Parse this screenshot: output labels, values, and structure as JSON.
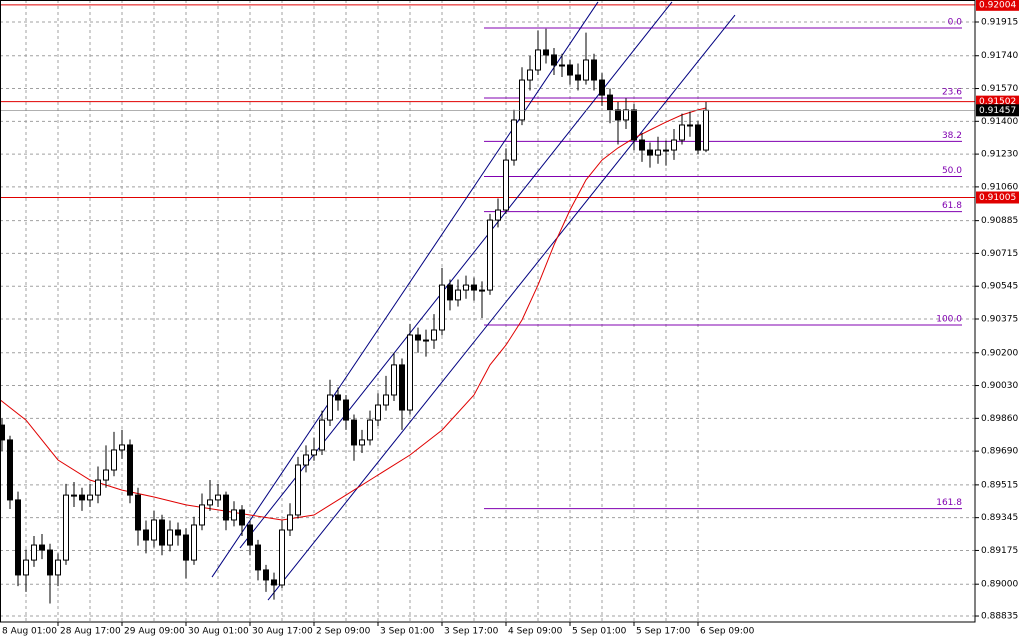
{
  "chart_data": {
    "type": "candlestick",
    "categories": [
      "8 Aug 01:00",
      null,
      null,
      null,
      null,
      null,
      null,
      null,
      "28 Aug 17:00",
      null,
      null,
      null,
      null,
      null,
      null,
      null,
      "29 Aug 09:00",
      null,
      null,
      null,
      null,
      null,
      null,
      null,
      "30 Aug 01:00",
      null,
      null,
      null,
      null,
      null,
      null,
      null,
      "30 Aug 17:00",
      null,
      null,
      null,
      null,
      null,
      null,
      null,
      "2 Sep 09:00",
      null,
      null,
      null,
      null,
      null,
      null,
      null,
      "3 Sep 01:00",
      null,
      null,
      null,
      null,
      null,
      null,
      null,
      "3 Sep 17:00",
      null,
      null,
      null,
      null,
      null,
      null,
      null,
      "4 Sep 09:00",
      null,
      null,
      null,
      null,
      null,
      null,
      null,
      "5 Sep 01:00",
      null,
      null,
      null,
      null,
      null,
      null,
      null,
      "5 Sep 17:00",
      null,
      null,
      null,
      null,
      null,
      null,
      null,
      "6 Sep 09:00",
      null
    ],
    "open": [
      0.8975,
      0.89825,
      0.89748,
      0.89437,
      0.89048,
      0.89125,
      0.89203,
      0.89177,
      0.89048,
      0.89125,
      0.89462,
      0.89462,
      0.89437,
      0.89462,
      0.8954,
      0.89592,
      0.89696,
      0.89722,
      0.89462,
      0.89281,
      0.89229,
      0.89333,
      0.89203,
      0.89281,
      0.89255,
      0.89125,
      0.89307,
      0.89411,
      0.89437,
      0.89462,
      0.89333,
      0.89385,
      0.89307,
      0.89203,
      0.89074,
      0.89022,
      0.88996,
      0.89281,
      0.89359,
      0.89618,
      0.8967,
      0.89696,
      0.89851,
      0.89981,
      0.89955,
      0.89851,
      0.89722,
      0.89748,
      0.89851,
      0.89929,
      0.89981,
      0.90137,
      0.89903,
      0.90292,
      0.90266,
      0.90266,
      0.90318,
      0.90551,
      0.90474,
      0.90525,
      0.90551,
      0.90525,
      0.90525,
      0.90888,
      0.9094,
      0.91199,
      0.91407,
      0.91614,
      0.91666,
      0.9177,
      0.91744,
      0.91692,
      0.91692,
      0.9164,
      0.91614,
      0.91718,
      0.91614,
      0.91536,
      0.91459,
      0.91407,
      0.91459,
      0.91303,
      0.91251,
      0.91225,
      0.91251,
      0.91251,
      0.91303,
      0.91381,
      0.91381,
      0.91251
    ],
    "high": [
      0.8988,
      0.8986,
      0.8977,
      0.8948,
      0.8918,
      0.8925,
      0.8926,
      0.8921,
      0.8916,
      0.8952,
      0.8953,
      0.895,
      0.8952,
      0.8961,
      0.8972,
      0.8979,
      0.898,
      0.8975,
      0.895,
      0.8933,
      0.8938,
      0.8936,
      0.8933,
      0.8932,
      0.8929,
      0.8935,
      0.8947,
      0.8954,
      0.8952,
      0.8948,
      0.8943,
      0.8941,
      0.8933,
      0.8923,
      0.891,
      0.8906,
      0.8933,
      0.8942,
      0.8966,
      0.8972,
      0.8976,
      0.899,
      0.9006,
      0.9002,
      0.8998,
      0.8988,
      0.898,
      0.899,
      0.8999,
      0.9008,
      0.902,
      0.9017,
      0.9035,
      0.9033,
      0.9032,
      0.904,
      0.9064,
      0.9058,
      0.9058,
      0.906,
      0.9059,
      0.9057,
      0.9092,
      0.91,
      0.9126,
      0.9146,
      0.9168,
      0.9174,
      0.9187,
      0.9188,
      0.9178,
      0.9175,
      0.9172,
      0.917,
      0.9186,
      0.9175,
      0.9165,
      0.9157,
      0.915,
      0.9152,
      0.9149,
      0.9134,
      0.9129,
      0.9132,
      0.913,
      0.9136,
      0.9144,
      0.9145,
      0.914,
      0.915
    ],
    "low": [
      0.897,
      0.8969,
      0.8939,
      0.8899,
      0.8896,
      0.8909,
      0.8913,
      0.889,
      0.8899,
      0.891,
      0.894,
      0.8938,
      0.894,
      0.8942,
      0.895,
      0.8956,
      0.8965,
      0.8942,
      0.892,
      0.8916,
      0.8919,
      0.8915,
      0.8917,
      0.892,
      0.8903,
      0.891,
      0.8928,
      0.8938,
      0.894,
      0.8928,
      0.893,
      0.8925,
      0.8915,
      0.8902,
      0.8896,
      0.8892,
      0.8898,
      0.8925,
      0.8934,
      0.8958,
      0.8964,
      0.8967,
      0.8982,
      0.899,
      0.898,
      0.8964,
      0.8968,
      0.8972,
      0.8982,
      0.899,
      0.8995,
      0.898,
      0.8988,
      0.902,
      0.9018,
      0.9022,
      0.9029,
      0.9042,
      0.9044,
      0.9048,
      0.9047,
      0.9038,
      0.905,
      0.9085,
      0.9092,
      0.9117,
      0.9138,
      0.9156,
      0.9164,
      0.917,
      0.9164,
      0.9163,
      0.9159,
      0.9156,
      0.9159,
      0.9156,
      0.9148,
      0.9139,
      0.9128,
      0.9136,
      0.9125,
      0.9119,
      0.9116,
      0.9118,
      0.9117,
      0.912,
      0.9128,
      0.9132,
      0.9123,
      0.9124
    ],
    "close": [
      0.89825,
      0.89748,
      0.89437,
      0.89048,
      0.89125,
      0.89203,
      0.89177,
      0.89048,
      0.89125,
      0.89462,
      0.89462,
      0.89437,
      0.89462,
      0.8954,
      0.89592,
      0.89696,
      0.89722,
      0.89462,
      0.89281,
      0.89229,
      0.89333,
      0.89203,
      0.89281,
      0.89255,
      0.89125,
      0.89307,
      0.89411,
      0.89437,
      0.89462,
      0.89333,
      0.89385,
      0.89307,
      0.89203,
      0.89074,
      0.89022,
      0.88996,
      0.89281,
      0.89359,
      0.89618,
      0.8967,
      0.89696,
      0.89851,
      0.89981,
      0.89955,
      0.89851,
      0.89722,
      0.89748,
      0.89851,
      0.89929,
      0.89981,
      0.90137,
      0.89903,
      0.90292,
      0.90266,
      0.90266,
      0.90318,
      0.90551,
      0.90474,
      0.90525,
      0.90551,
      0.90525,
      0.90525,
      0.90888,
      0.9094,
      0.91199,
      0.91407,
      0.91614,
      0.91666,
      0.9177,
      0.91744,
      0.91692,
      0.91692,
      0.9164,
      0.91614,
      0.91718,
      0.91614,
      0.91536,
      0.91459,
      0.91407,
      0.91459,
      0.91303,
      0.91251,
      0.91225,
      0.91251,
      0.91251,
      0.91303,
      0.91381,
      0.91381,
      0.91251,
      0.91457
    ],
    "up_color": "#ffffff",
    "down_color": "#000000",
    "xlim": [
      0.75,
      122.625
    ],
    "ylim": [
      0.88804,
      0.92029
    ],
    "yticks": [
      0.91915,
      {
        "value": 0.9174,
        "label": "0.91740"
      },
      {
        "value": 0.9157,
        "label": "0.91570"
      },
      {
        "value": 0.914,
        "label": "0.91400"
      },
      {
        "value": 0.9123,
        "label": "0.91230"
      },
      {
        "value": 0.9106,
        "label": "0.91060"
      },
      0.90885,
      0.90715,
      0.90545,
      0.90375,
      {
        "value": 0.902,
        "label": "0.90200"
      },
      {
        "value": 0.9003,
        "label": "0.90030"
      },
      {
        "value": 0.8986,
        "label": "0.89860"
      },
      {
        "value": 0.8969,
        "label": "0.89690"
      },
      0.89515,
      0.89345,
      0.89175,
      {
        "value": 0.89,
        "label": "0.89000"
      },
      0.88835
    ],
    "grid": true,
    "ma": {
      "color": "#e00000",
      "index": [
        0,
        4,
        8,
        12,
        16,
        20,
        24,
        28,
        32,
        36,
        40,
        44,
        48,
        52,
        56,
        60,
        62,
        64,
        66,
        68,
        70,
        72,
        74,
        76,
        78,
        80,
        82,
        84,
        86,
        88,
        89
      ],
      "values": [
        0.89981,
        0.89851,
        0.89644,
        0.8954,
        0.89488,
        0.89452,
        0.89411,
        0.89385,
        0.89359,
        0.89333,
        0.89359,
        0.89462,
        0.89566,
        0.8967,
        0.89799,
        0.89981,
        0.90137,
        0.9024,
        0.9037,
        0.90551,
        0.90759,
        0.9094,
        0.91096,
        0.91199,
        0.91262,
        0.91313,
        0.91355,
        0.91396,
        0.91433,
        0.91459,
        0.91469
      ]
    },
    "trendlines": [
      {
        "color": "#000080",
        "x": [
          27.25,
          75.5
        ],
        "y": [
          0.89037,
          0.92019
        ]
      },
      {
        "color": "#000080",
        "x": [
          30.75,
          84.75
        ],
        "y": [
          0.89188,
          0.92019
        ]
      },
      {
        "color": "#000080",
        "x": [
          34.25,
          92.625
        ],
        "y": [
          0.88918,
          0.91951
        ]
      }
    ],
    "fib": {
      "color": "#8000b0",
      "x": [
        61.25,
        121
      ],
      "levels": [
        {
          "label": "0.0",
          "price": 0.91884
        },
        {
          "label": "23.6",
          "price": 0.91521
        },
        {
          "label": "38.2",
          "price": 0.91296
        },
        {
          "label": "50.0",
          "price": 0.91114
        },
        {
          "label": "61.8",
          "price": 0.90932
        },
        {
          "label": "100.0",
          "price": 0.90344
        },
        {
          "label": "161.8",
          "price": 0.89392
        }
      ]
    },
    "levels": [
      {
        "value": 0.92004,
        "color": "#e00000"
      },
      {
        "value": 0.91502,
        "color": "#e00000"
      },
      {
        "value": 0.91005,
        "color": "#e00000"
      }
    ],
    "last_price": 0.91457
  }
}
